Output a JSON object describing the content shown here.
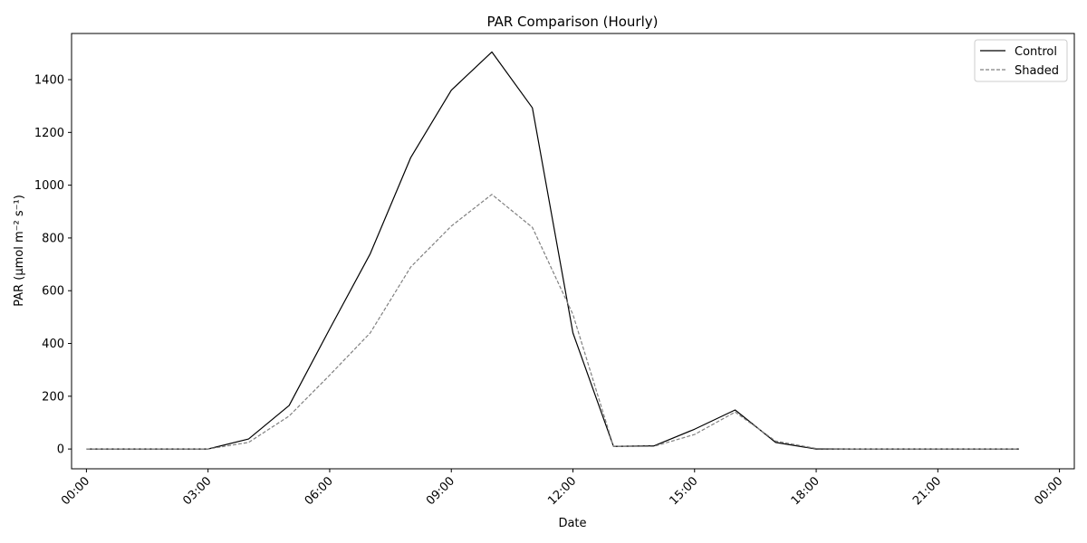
{
  "chart_data": {
    "type": "line",
    "title": "PAR Comparison (Hourly)",
    "xlabel": "Date",
    "ylabel": "PAR (µmol m⁻² s⁻¹)",
    "x_unit": "hour",
    "x_axis_type": "time-of-day",
    "xlim": [
      "23:38",
      "24:22"
    ],
    "ylim": [
      -75,
      1575
    ],
    "x_ticks": [
      0,
      3,
      6,
      9,
      12,
      15,
      18,
      21,
      24
    ],
    "x_tick_labels": [
      "00:00",
      "03:00",
      "06:00",
      "09:00",
      "12:00",
      "15:00",
      "18:00",
      "21:00",
      "00:00"
    ],
    "y_ticks": [
      0,
      200,
      400,
      600,
      800,
      1000,
      1200,
      1400
    ],
    "y_tick_labels": [
      "0",
      "200",
      "400",
      "600",
      "800",
      "1000",
      "1200",
      "1400"
    ],
    "grid": false,
    "legend_position": "top-right",
    "x": [
      "00:00",
      "01:00",
      "02:00",
      "03:00",
      "04:00",
      "05:00",
      "06:00",
      "07:00",
      "08:00",
      "09:00",
      "10:00",
      "11:00",
      "12:00",
      "13:00",
      "14:00",
      "15:00",
      "16:00",
      "17:00",
      "18:00",
      "19:00",
      "20:00",
      "21:00",
      "22:00",
      "23:00"
    ],
    "series": [
      {
        "name": "Control",
        "color": "#000000",
        "dash": "solid",
        "values": [
          0,
          0,
          0,
          0,
          38,
          165,
          455,
          740,
          1105,
          1360,
          1505,
          1293,
          440,
          10,
          12,
          75,
          148,
          25,
          0,
          0,
          0,
          0,
          0,
          0
        ]
      },
      {
        "name": "Shaded",
        "color": "#808080",
        "dash": "dashed",
        "values": [
          0,
          0,
          0,
          0,
          25,
          125,
          280,
          440,
          690,
          845,
          965,
          840,
          510,
          10,
          10,
          55,
          140,
          30,
          2,
          0,
          0,
          0,
          0,
          0
        ]
      }
    ]
  }
}
